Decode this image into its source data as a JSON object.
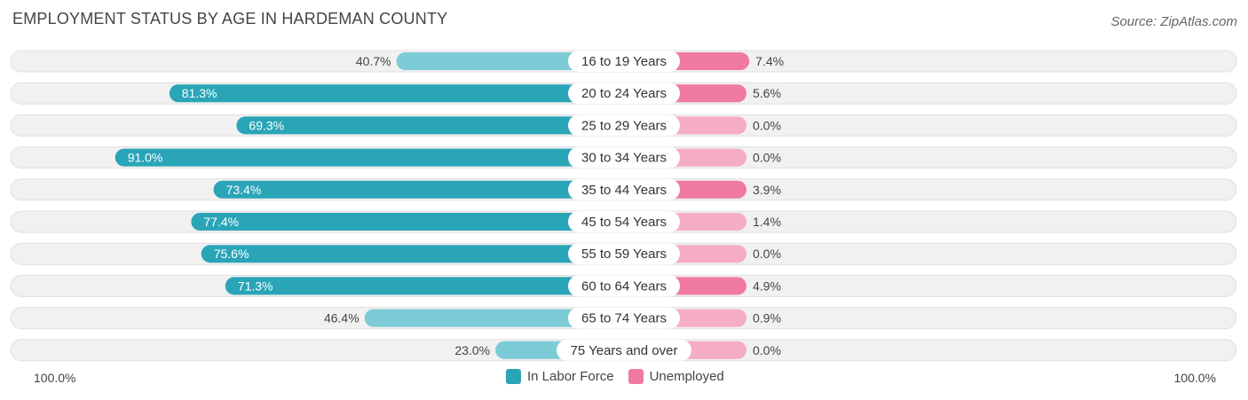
{
  "header": {
    "title": "EMPLOYMENT STATUS BY AGE IN HARDEMAN COUNTY",
    "source": "Source: ZipAtlas.com"
  },
  "axis": {
    "left_label": "100.0%",
    "right_label": "100.0%"
  },
  "legend": {
    "items": [
      {
        "label": "In Labor Force",
        "color": "#2aa5b8"
      },
      {
        "label": "Unemployed",
        "color": "#f07aa0"
      }
    ]
  },
  "colors": {
    "labor_strong": "#2aa5b8",
    "labor_light": "#7ccbd6",
    "unemployed_strong": "#f07aa0",
    "unemployed_light": "#f5adc4",
    "row_background": "#f1f1f1"
  },
  "chart_data": {
    "type": "bar",
    "orientation": "horizontal-diverging",
    "title": "EMPLOYMENT STATUS BY AGE IN HARDEMAN COUNTY",
    "xlim": [
      -100,
      100
    ],
    "categories": [
      "16 to 19 Years",
      "20 to 24 Years",
      "25 to 29 Years",
      "30 to 34 Years",
      "35 to 44 Years",
      "45 to 54 Years",
      "55 to 59 Years",
      "60 to 64 Years",
      "65 to 74 Years",
      "75 Years and over"
    ],
    "series": [
      {
        "name": "In Labor Force",
        "values": [
          40.7,
          81.3,
          69.3,
          91.0,
          73.4,
          77.4,
          75.6,
          71.3,
          46.4,
          23.0
        ],
        "labels": [
          "40.7%",
          "81.3%",
          "69.3%",
          "91.0%",
          "73.4%",
          "77.4%",
          "75.6%",
          "71.3%",
          "46.4%",
          "23.0%"
        ]
      },
      {
        "name": "Unemployed",
        "values": [
          7.4,
          5.6,
          0.0,
          0.0,
          3.9,
          1.4,
          0.0,
          4.9,
          0.9,
          0.0
        ],
        "labels": [
          "7.4%",
          "5.6%",
          "0.0%",
          "0.0%",
          "3.9%",
          "1.4%",
          "0.0%",
          "4.9%",
          "0.9%",
          "0.0%"
        ]
      }
    ],
    "legend_position": "bottom-center"
  }
}
